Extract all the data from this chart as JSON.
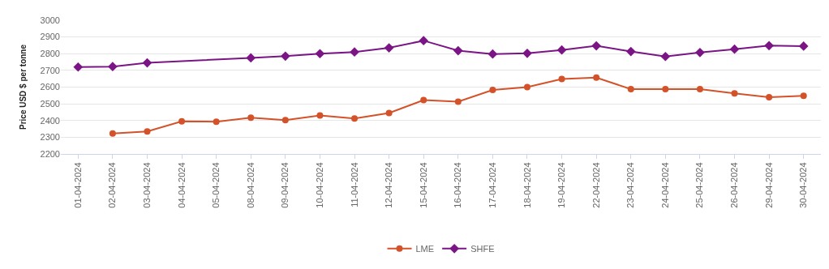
{
  "chart_data": {
    "type": "line",
    "ylabel": "Price USD $ per tonne",
    "categories": [
      "01-04-2024",
      "02-04-2024",
      "03-04-2024",
      "04-04-2024",
      "05-04-2024",
      "08-04-2024",
      "09-04-2024",
      "10-04-2024",
      "11-04-2024",
      "12-04-2024",
      "15-04-2024",
      "16-04-2024",
      "17-04-2024",
      "18-04-2024",
      "19-04-2024",
      "22-04-2024",
      "23-04-2024",
      "24-04-2024",
      "25-04-2024",
      "26-04-2024",
      "29-04-2024",
      "30-04-2024"
    ],
    "series": [
      {
        "name": "LME",
        "color": "#d4522a",
        "marker": "circle",
        "values": [
          null,
          2323,
          2335,
          2395,
          2393,
          2417,
          2403,
          2430,
          2412,
          2445,
          2522,
          2513,
          2583,
          2600,
          2648,
          2657,
          2588,
          2588,
          2588,
          2562,
          2540,
          2548
        ]
      },
      {
        "name": "SHFE",
        "color": "#7b1586",
        "marker": "diamond",
        "values": [
          2720,
          2723,
          2745,
          null,
          null,
          2775,
          2785,
          2800,
          2810,
          2835,
          2878,
          2818,
          2798,
          2802,
          2822,
          2847,
          2813,
          2783,
          2807,
          2827,
          2848,
          2845
        ]
      }
    ],
    "ylim": [
      2200,
      3000
    ],
    "yticks": [
      2200,
      2300,
      2400,
      2500,
      2600,
      2700,
      2800,
      2900,
      3000
    ],
    "grid": "y",
    "legend": "bottom",
    "line_style": "solid"
  }
}
